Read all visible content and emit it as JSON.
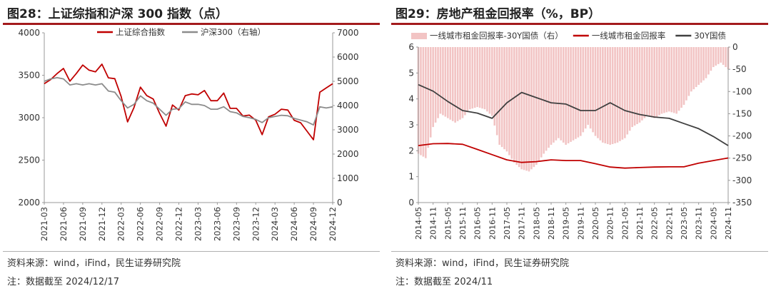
{
  "colors": {
    "accent": "#a31b1d",
    "red": "#c00000",
    "gray": "#8c8c8c",
    "dark": "#404040",
    "bar": "#f2c4c4"
  },
  "chart_data": [
    {
      "id": "fig28",
      "type": "line",
      "title": "图28：上证综指和沪深 300 指数（点）",
      "source": "资料来源：wind，iFind，民生证券研究院",
      "note": "注：数据截至 2024/12/17",
      "x_ticks": [
        "2021-03",
        "2021-06",
        "2021-09",
        "2021-12",
        "2022-03",
        "2022-06",
        "2022-09",
        "2022-12",
        "2023-03",
        "2023-06",
        "2023-09",
        "2023-12",
        "2024-03",
        "2024-06",
        "2024-09",
        "2024-12"
      ],
      "x_range": [
        "2021-03",
        "2024-12"
      ],
      "y_left": {
        "ticks": [
          "2000",
          "2500",
          "3000",
          "3500",
          "4000"
        ],
        "range": [
          2000,
          4000
        ]
      },
      "y_right": {
        "ticks": [
          "0",
          "1000",
          "2000",
          "3000",
          "4000",
          "5000",
          "6000",
          "7000"
        ],
        "range": [
          0,
          7000
        ]
      },
      "legend": {
        "placement": "top",
        "items": [
          "上证综合指数",
          "沪深300（右轴）"
        ]
      },
      "series": [
        {
          "name": "上证综合指数",
          "axis": "left",
          "color": "#c00000",
          "points": [
            [
              "2021-03",
              3400
            ],
            [
              "2021-04",
              3450
            ],
            [
              "2021-05",
              3520
            ],
            [
              "2021-06",
              3580
            ],
            [
              "2021-07",
              3430
            ],
            [
              "2021-08",
              3520
            ],
            [
              "2021-09",
              3620
            ],
            [
              "2021-10",
              3560
            ],
            [
              "2021-11",
              3540
            ],
            [
              "2021-12",
              3630
            ],
            [
              "2022-01",
              3470
            ],
            [
              "2022-02",
              3460
            ],
            [
              "2022-03",
              3250
            ],
            [
              "2022-04",
              2950
            ],
            [
              "2022-05",
              3120
            ],
            [
              "2022-06",
              3360
            ],
            [
              "2022-07",
              3260
            ],
            [
              "2022-08",
              3220
            ],
            [
              "2022-09",
              3050
            ],
            [
              "2022-10",
              2900
            ],
            [
              "2022-11",
              3150
            ],
            [
              "2022-12",
              3090
            ],
            [
              "2023-01",
              3260
            ],
            [
              "2023-02",
              3280
            ],
            [
              "2023-03",
              3270
            ],
            [
              "2023-04",
              3320
            ],
            [
              "2023-05",
              3200
            ],
            [
              "2023-06",
              3200
            ],
            [
              "2023-07",
              3290
            ],
            [
              "2023-08",
              3110
            ],
            [
              "2023-09",
              3110
            ],
            [
              "2023-10",
              3020
            ],
            [
              "2023-11",
              3030
            ],
            [
              "2023-12",
              2970
            ],
            [
              "2024-01",
              2800
            ],
            [
              "2024-02",
              3010
            ],
            [
              "2024-03",
              3040
            ],
            [
              "2024-04",
              3100
            ],
            [
              "2024-05",
              3090
            ],
            [
              "2024-06",
              2970
            ],
            [
              "2024-07",
              2940
            ],
            [
              "2024-08",
              2840
            ],
            [
              "2024-09",
              2740
            ],
            [
              "2024-10",
              3300
            ],
            [
              "2024-11",
              3350
            ],
            [
              "2024-12",
              3400
            ]
          ]
        },
        {
          "name": "沪深300（右轴）",
          "axis": "right",
          "color": "#8c8c8c",
          "points": [
            [
              "2021-03",
              5000
            ],
            [
              "2021-04",
              5100
            ],
            [
              "2021-05",
              5150
            ],
            [
              "2021-06",
              5100
            ],
            [
              "2021-07",
              4850
            ],
            [
              "2021-08",
              4900
            ],
            [
              "2021-09",
              4850
            ],
            [
              "2021-10",
              4900
            ],
            [
              "2021-11",
              4850
            ],
            [
              "2021-12",
              4900
            ],
            [
              "2022-01",
              4600
            ],
            [
              "2022-02",
              4550
            ],
            [
              "2022-03",
              4200
            ],
            [
              "2022-04",
              3900
            ],
            [
              "2022-05",
              4050
            ],
            [
              "2022-06",
              4400
            ],
            [
              "2022-07",
              4200
            ],
            [
              "2022-08",
              4100
            ],
            [
              "2022-09",
              3850
            ],
            [
              "2022-10",
              3600
            ],
            [
              "2022-11",
              3850
            ],
            [
              "2022-12",
              3870
            ],
            [
              "2023-01",
              4150
            ],
            [
              "2023-02",
              4050
            ],
            [
              "2023-03",
              4050
            ],
            [
              "2023-04",
              4000
            ],
            [
              "2023-05",
              3850
            ],
            [
              "2023-06",
              3850
            ],
            [
              "2023-07",
              3950
            ],
            [
              "2023-08",
              3750
            ],
            [
              "2023-09",
              3700
            ],
            [
              "2023-10",
              3550
            ],
            [
              "2023-11",
              3500
            ],
            [
              "2023-12",
              3430
            ],
            [
              "2024-01",
              3300
            ],
            [
              "2024-02",
              3500
            ],
            [
              "2024-03",
              3550
            ],
            [
              "2024-04",
              3600
            ],
            [
              "2024-05",
              3580
            ],
            [
              "2024-06",
              3470
            ],
            [
              "2024-07",
              3400
            ],
            [
              "2024-08",
              3330
            ],
            [
              "2024-09",
              3200
            ],
            [
              "2024-10",
              3950
            ],
            [
              "2024-11",
              3900
            ],
            [
              "2024-12",
              3950
            ]
          ]
        }
      ]
    },
    {
      "id": "fig29",
      "type": "bar+line",
      "title": "图29：房地产租金回报率（%，BP）",
      "source": "资料来源：wind，iFind，民生证券研究院",
      "note": "注：数据截至 2024/11",
      "x_ticks": [
        "2014-05",
        "2014-11",
        "2015-05",
        "2015-11",
        "2016-05",
        "2016-11",
        "2017-05",
        "2017-11",
        "2018-05",
        "2018-11",
        "2019-05",
        "2019-11",
        "2020-05",
        "2020-11",
        "2021-05",
        "2021-11",
        "2022-05",
        "2022-11",
        "2023-05",
        "2023-11",
        "2024-05",
        "2024-11"
      ],
      "x_range": [
        "2014-05",
        "2024-11"
      ],
      "y_left": {
        "ticks": [
          "0",
          "1",
          "2",
          "3",
          "4",
          "5",
          "6"
        ],
        "range": [
          0,
          6
        ]
      },
      "y_right": {
        "ticks": [
          "0",
          "-50",
          "-100",
          "-150",
          "-200",
          "-250",
          "-300",
          "-350"
        ],
        "range": [
          -350,
          0
        ]
      },
      "legend": {
        "placement": "top",
        "items": [
          "一线城市租金回报率-30Y国债（右）",
          "一线城市租金回报率",
          "30Y国债"
        ]
      },
      "series": [
        {
          "name": "一线城市租金回报率-30Y国债（右）",
          "axis": "right",
          "type": "bar",
          "color": "#f2c4c4",
          "points": [
            [
              "2014-05",
              -240
            ],
            [
              "2014-08",
              -250
            ],
            [
              "2014-11",
              -180
            ],
            [
              "2015-02",
              -150
            ],
            [
              "2015-05",
              -160
            ],
            [
              "2015-08",
              -170
            ],
            [
              "2015-11",
              -160
            ],
            [
              "2016-02",
              -140
            ],
            [
              "2016-05",
              -135
            ],
            [
              "2016-08",
              -140
            ],
            [
              "2016-11",
              -155
            ],
            [
              "2017-02",
              -220
            ],
            [
              "2017-05",
              -235
            ],
            [
              "2017-08",
              -260
            ],
            [
              "2017-11",
              -275
            ],
            [
              "2018-02",
              -280
            ],
            [
              "2018-05",
              -265
            ],
            [
              "2018-08",
              -240
            ],
            [
              "2018-11",
              -220
            ],
            [
              "2019-02",
              -205
            ],
            [
              "2019-05",
              -220
            ],
            [
              "2019-08",
              -210
            ],
            [
              "2019-11",
              -200
            ],
            [
              "2020-02",
              -175
            ],
            [
              "2020-05",
              -200
            ],
            [
              "2020-08",
              -215
            ],
            [
              "2020-11",
              -220
            ],
            [
              "2021-02",
              -215
            ],
            [
              "2021-05",
              -205
            ],
            [
              "2021-08",
              -180
            ],
            [
              "2021-11",
              -170
            ],
            [
              "2022-02",
              -155
            ],
            [
              "2022-05",
              -160
            ],
            [
              "2022-08",
              -150
            ],
            [
              "2022-11",
              -145
            ],
            [
              "2023-02",
              -150
            ],
            [
              "2023-05",
              -130
            ],
            [
              "2023-08",
              -100
            ],
            [
              "2023-11",
              -85
            ],
            [
              "2024-02",
              -70
            ],
            [
              "2024-05",
              -45
            ],
            [
              "2024-08",
              -35
            ],
            [
              "2024-11",
              -50
            ]
          ]
        },
        {
          "name": "一线城市租金回报率",
          "axis": "left",
          "type": "line",
          "color": "#c00000",
          "points": [
            [
              "2014-05",
              2.2
            ],
            [
              "2014-11",
              2.27
            ],
            [
              "2015-05",
              2.28
            ],
            [
              "2015-11",
              2.25
            ],
            [
              "2016-05",
              2.05
            ],
            [
              "2016-11",
              1.85
            ],
            [
              "2017-05",
              1.65
            ],
            [
              "2017-11",
              1.55
            ],
            [
              "2018-05",
              1.58
            ],
            [
              "2018-11",
              1.65
            ],
            [
              "2019-05",
              1.62
            ],
            [
              "2019-11",
              1.62
            ],
            [
              "2020-05",
              1.5
            ],
            [
              "2020-11",
              1.37
            ],
            [
              "2021-05",
              1.33
            ],
            [
              "2021-11",
              1.35
            ],
            [
              "2022-05",
              1.37
            ],
            [
              "2022-11",
              1.38
            ],
            [
              "2023-05",
              1.38
            ],
            [
              "2023-11",
              1.52
            ],
            [
              "2024-05",
              1.62
            ],
            [
              "2024-11",
              1.72
            ]
          ]
        },
        {
          "name": "30Y国债",
          "axis": "left",
          "type": "line",
          "color": "#404040",
          "points": [
            [
              "2014-05",
              4.55
            ],
            [
              "2014-11",
              4.3
            ],
            [
              "2015-05",
              3.9
            ],
            [
              "2015-11",
              3.55
            ],
            [
              "2016-05",
              3.45
            ],
            [
              "2016-11",
              3.25
            ],
            [
              "2017-05",
              3.85
            ],
            [
              "2017-11",
              4.25
            ],
            [
              "2018-05",
              4.05
            ],
            [
              "2018-11",
              3.85
            ],
            [
              "2019-05",
              3.8
            ],
            [
              "2019-11",
              3.55
            ],
            [
              "2020-05",
              3.55
            ],
            [
              "2020-11",
              3.85
            ],
            [
              "2021-05",
              3.55
            ],
            [
              "2021-11",
              3.4
            ],
            [
              "2022-05",
              3.3
            ],
            [
              "2022-11",
              3.25
            ],
            [
              "2023-05",
              3.05
            ],
            [
              "2023-11",
              2.85
            ],
            [
              "2024-05",
              2.55
            ],
            [
              "2024-11",
              2.2
            ]
          ]
        }
      ]
    }
  ]
}
